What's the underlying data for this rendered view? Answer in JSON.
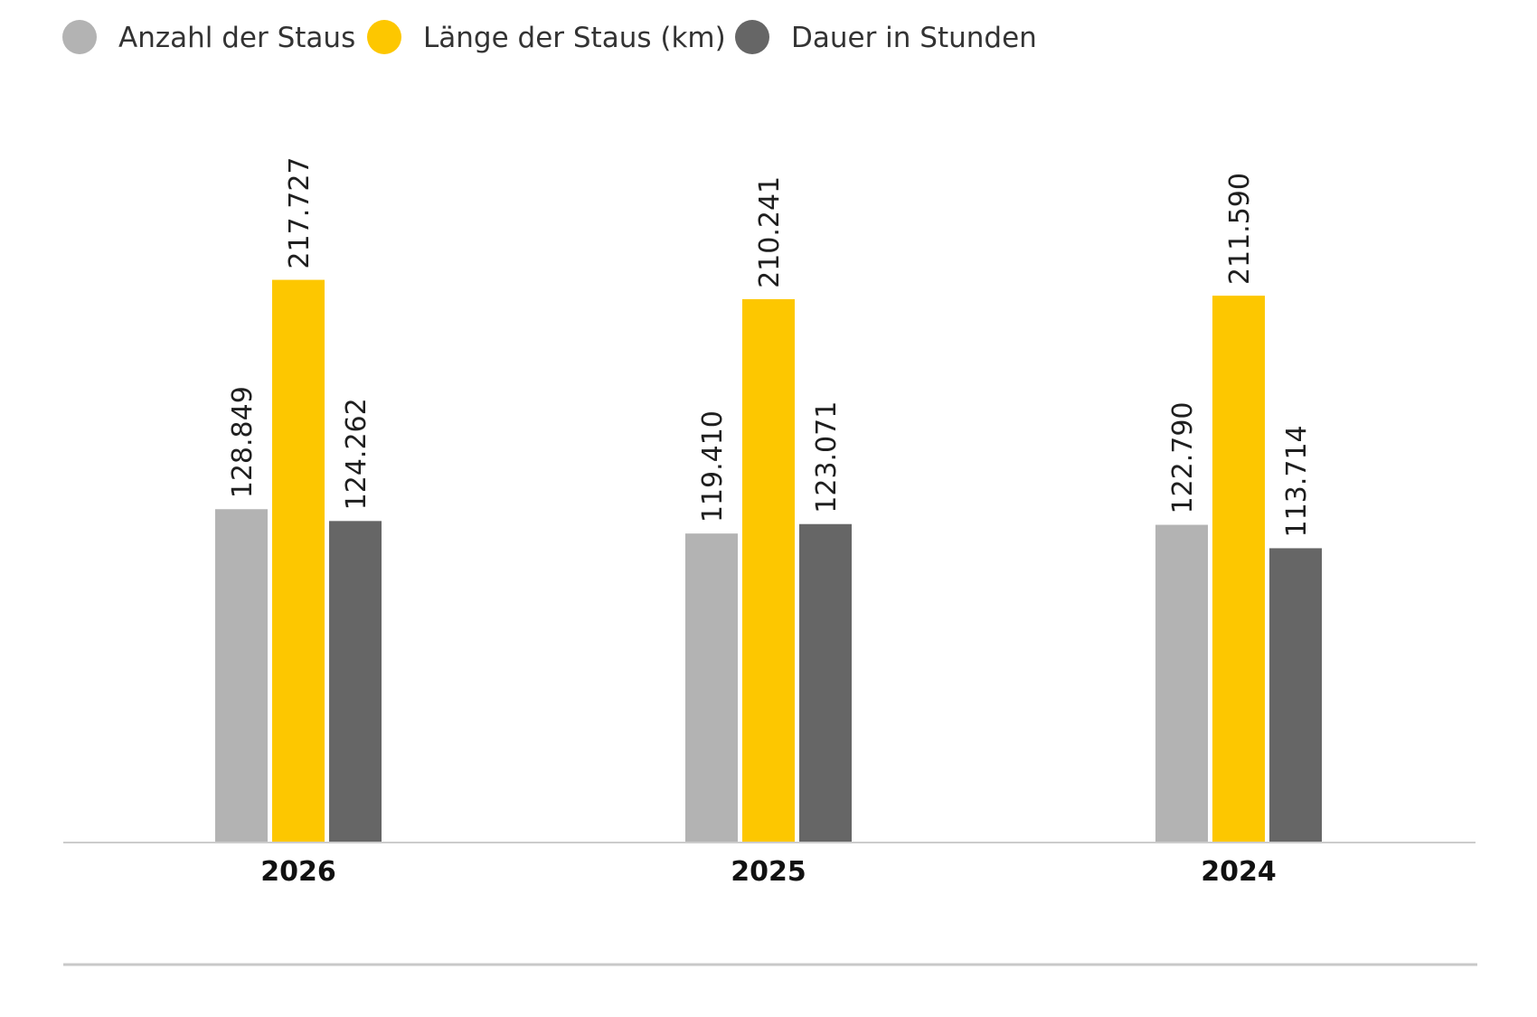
{
  "chart_data": {
    "type": "bar",
    "categories": [
      "2026",
      "2025",
      "2024"
    ],
    "series": [
      {
        "name": "Anzahl der Staus",
        "color": "#b3b3b3",
        "values": [
          128849,
          119410,
          122790
        ],
        "labels": [
          "128.849",
          "119.410",
          "122.790"
        ]
      },
      {
        "name": "Länge der Staus (km)",
        "color": "#fdc700",
        "values": [
          217727,
          210241,
          211590
        ],
        "labels": [
          "217.727",
          "210.241",
          "211.590"
        ]
      },
      {
        "name": "Dauer in Stunden",
        "color": "#666666",
        "values": [
          124262,
          123071,
          113714
        ],
        "labels": [
          "124.262",
          "123.071",
          "113.714"
        ]
      }
    ],
    "ylim": [
      0,
      240000
    ],
    "grid": false,
    "legend_position": "top-left",
    "baseline_color": "#cccccc",
    "footer_rule_color": "#c8c8c8"
  }
}
